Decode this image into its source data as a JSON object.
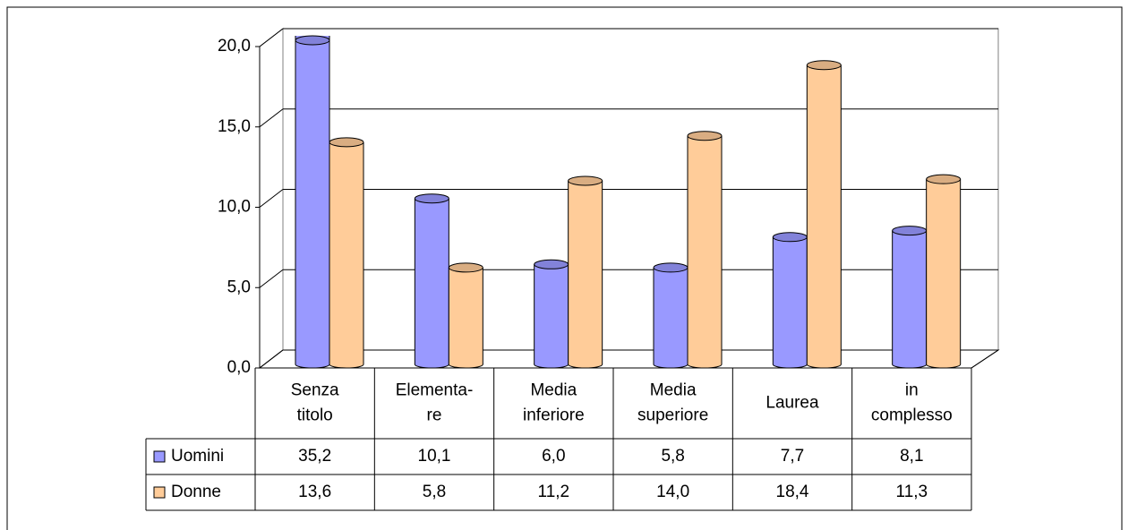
{
  "chart_data": {
    "type": "bar3d",
    "categories": [
      [
        "Senza",
        "titolo"
      ],
      [
        "Elementa-",
        "re"
      ],
      [
        "Media",
        "inferiore"
      ],
      [
        "Media",
        "superiore"
      ],
      [
        "Laurea"
      ],
      [
        "in",
        "complesso"
      ]
    ],
    "series": [
      {
        "name": "Uomini",
        "color": "#9999ff",
        "values": [
          35.2,
          10.1,
          6.0,
          5.8,
          7.7,
          8.1
        ],
        "value_labels": [
          "35,2",
          "10,1",
          "6,0",
          "5,8",
          "7,7",
          "8,1"
        ]
      },
      {
        "name": "Donne",
        "color": "#ffcc99",
        "values": [
          13.6,
          5.8,
          11.2,
          14.0,
          18.4,
          11.3
        ],
        "value_labels": [
          "13,6",
          "5,8",
          "11,2",
          "14,0",
          "18,4",
          "11,3"
        ]
      }
    ],
    "ylim": [
      0,
      20
    ],
    "yticks": [
      {
        "value": 0,
        "label": "0,0"
      },
      {
        "value": 5,
        "label": "5,0"
      },
      {
        "value": 10,
        "label": "10,0"
      },
      {
        "value": 15,
        "label": "15,0"
      },
      {
        "value": 20,
        "label": "20,0"
      }
    ],
    "grid": true
  }
}
